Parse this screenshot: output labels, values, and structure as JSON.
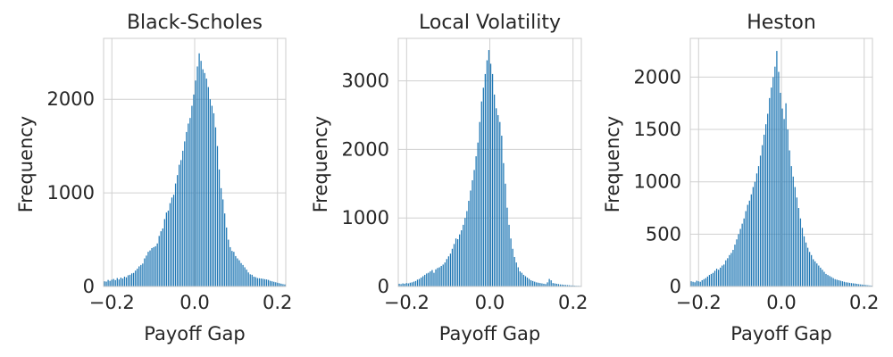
{
  "figure": {
    "bar_color": "#1f77b4",
    "grid": true,
    "background": "#ffffff"
  },
  "chart_data": [
    {
      "type": "bar",
      "title": "Black-Scholes",
      "xlabel": "Payoff Gap",
      "ylabel": "Frequency",
      "xlim": [
        -0.22,
        0.22
      ],
      "ylim": [
        0,
        2650
      ],
      "xticks": [
        -0.2,
        0.0,
        0.2
      ],
      "xtick_labels": [
        "−0.2",
        "0.0",
        "0.2"
      ],
      "yticks": [
        0,
        1000,
        2000
      ],
      "ytick_labels": [
        "0",
        "1000",
        "2000"
      ],
      "bin_width": 0.0044,
      "x": [
        -0.2178,
        -0.2134,
        -0.209,
        -0.2046,
        -0.2002,
        -0.1958,
        -0.1914,
        -0.187,
        -0.1826,
        -0.1782,
        -0.1738,
        -0.1694,
        -0.165,
        -0.1606,
        -0.1562,
        -0.1518,
        -0.1474,
        -0.143,
        -0.1386,
        -0.1342,
        -0.1298,
        -0.1254,
        -0.121,
        -0.1166,
        -0.1122,
        -0.1078,
        -0.1034,
        -0.099,
        -0.0946,
        -0.0902,
        -0.0858,
        -0.0814,
        -0.077,
        -0.0726,
        -0.0682,
        -0.0638,
        -0.0594,
        -0.055,
        -0.0506,
        -0.0462,
        -0.0418,
        -0.0374,
        -0.033,
        -0.0286,
        -0.0242,
        -0.0198,
        -0.0154,
        -0.011,
        -0.0066,
        -0.0022,
        0.0022,
        0.0066,
        0.011,
        0.0154,
        0.0198,
        0.0242,
        0.0286,
        0.033,
        0.0374,
        0.0418,
        0.0462,
        0.0506,
        0.055,
        0.0594,
        0.0638,
        0.0682,
        0.0726,
        0.077,
        0.0814,
        0.0858,
        0.0902,
        0.0946,
        0.099,
        0.1034,
        0.1078,
        0.1122,
        0.1166,
        0.121,
        0.1254,
        0.1298,
        0.1342,
        0.1386,
        0.143,
        0.1474,
        0.1518,
        0.1562,
        0.1606,
        0.165,
        0.1694,
        0.1738,
        0.1782,
        0.1826,
        0.187,
        0.1914,
        0.1958,
        0.2002,
        0.2046,
        0.209,
        0.2134,
        0.2178
      ],
      "values": [
        55,
        52,
        70,
        60,
        72,
        80,
        68,
        90,
        75,
        95,
        85,
        105,
        98,
        120,
        125,
        140,
        145,
        170,
        190,
        215,
        230,
        245,
        300,
        330,
        370,
        385,
        410,
        420,
        430,
        460,
        540,
        590,
        620,
        720,
        790,
        810,
        890,
        950,
        980,
        1100,
        1190,
        1300,
        1350,
        1450,
        1550,
        1650,
        1740,
        1800,
        1930,
        2050,
        2200,
        2350,
        2490,
        2410,
        2320,
        2280,
        2220,
        2130,
        2000,
        1930,
        1850,
        1700,
        1500,
        1250,
        1050,
        930,
        780,
        630,
        500,
        420,
        380,
        370,
        325,
        300,
        280,
        250,
        230,
        205,
        180,
        150,
        130,
        125,
        105,
        100,
        90,
        88,
        85,
        82,
        78,
        75,
        70,
        60,
        55,
        50,
        45,
        40,
        35,
        30,
        25,
        22
      ]
    },
    {
      "type": "bar",
      "title": "Local Volatility",
      "xlabel": "Payoff Gap",
      "ylabel": "Frequency",
      "xlim": [
        -0.22,
        0.22
      ],
      "ylim": [
        0,
        3620
      ],
      "xticks": [
        -0.2,
        0.0,
        0.2
      ],
      "xtick_labels": [
        "−0.2",
        "0.0",
        "0.2"
      ],
      "yticks": [
        0,
        1000,
        2000,
        3000
      ],
      "ytick_labels": [
        "0",
        "1000",
        "2000",
        "3000"
      ],
      "bin_width": 0.0044,
      "x": [
        -0.2178,
        -0.2134,
        -0.209,
        -0.2046,
        -0.2002,
        -0.1958,
        -0.1914,
        -0.187,
        -0.1826,
        -0.1782,
        -0.1738,
        -0.1694,
        -0.165,
        -0.1606,
        -0.1562,
        -0.1518,
        -0.1474,
        -0.143,
        -0.1386,
        -0.1342,
        -0.1298,
        -0.1254,
        -0.121,
        -0.1166,
        -0.1122,
        -0.1078,
        -0.1034,
        -0.099,
        -0.0946,
        -0.0902,
        -0.0858,
        -0.0814,
        -0.077,
        -0.0726,
        -0.0682,
        -0.0638,
        -0.0594,
        -0.055,
        -0.0506,
        -0.0462,
        -0.0418,
        -0.0374,
        -0.033,
        -0.0286,
        -0.0242,
        -0.0198,
        -0.0154,
        -0.011,
        -0.0066,
        -0.0022,
        0.0022,
        0.0066,
        0.011,
        0.0154,
        0.0198,
        0.0242,
        0.0286,
        0.033,
        0.0374,
        0.0418,
        0.0462,
        0.0506,
        0.055,
        0.0594,
        0.0638,
        0.0682,
        0.0726,
        0.077,
        0.0814,
        0.0858,
        0.0902,
        0.0946,
        0.099,
        0.1034,
        0.1078,
        0.1122,
        0.1166,
        0.121,
        0.1254,
        0.1298,
        0.1342,
        0.1386,
        0.143,
        0.1474,
        0.1518,
        0.1562,
        0.1606,
        0.165,
        0.1694,
        0.1738,
        0.1782,
        0.1826,
        0.187,
        0.1914,
        0.1958,
        0.2002,
        0.2046,
        0.209,
        0.2134,
        0.2178
      ],
      "values": [
        40,
        35,
        45,
        40,
        50,
        45,
        55,
        60,
        70,
        80,
        100,
        110,
        130,
        150,
        170,
        190,
        200,
        220,
        240,
        200,
        250,
        270,
        280,
        300,
        320,
        350,
        400,
        440,
        480,
        550,
        620,
        700,
        690,
        760,
        820,
        900,
        1000,
        1100,
        1250,
        1400,
        1550,
        1700,
        1900,
        2100,
        2400,
        2700,
        2900,
        3100,
        3300,
        3450,
        3250,
        3100,
        2800,
        2600,
        2500,
        2400,
        2200,
        1800,
        1500,
        1150,
        900,
        700,
        550,
        430,
        350,
        280,
        220,
        200,
        170,
        150,
        130,
        110,
        90,
        80,
        70,
        60,
        55,
        50,
        45,
        40,
        35,
        60,
        110,
        90,
        50,
        45,
        40,
        35,
        30,
        28,
        25,
        22,
        20,
        18,
        15,
        14,
        12,
        10,
        10,
        8
      ]
    },
    {
      "type": "bar",
      "title": "Heston",
      "xlabel": "Payoff Gap",
      "ylabel": "Frequency",
      "xlim": [
        -0.22,
        0.22
      ],
      "ylim": [
        0,
        2370
      ],
      "xticks": [
        -0.2,
        0.0,
        0.2
      ],
      "xtick_labels": [
        "−0.2",
        "0.0",
        "0.2"
      ],
      "yticks": [
        0,
        500,
        1000,
        1500,
        2000
      ],
      "ytick_labels": [
        "0",
        "500",
        "1000",
        "1500",
        "2000"
      ],
      "bin_width": 0.0044,
      "x": [
        -0.2178,
        -0.2134,
        -0.209,
        -0.2046,
        -0.2002,
        -0.1958,
        -0.1914,
        -0.187,
        -0.1826,
        -0.1782,
        -0.1738,
        -0.1694,
        -0.165,
        -0.1606,
        -0.1562,
        -0.1518,
        -0.1474,
        -0.143,
        -0.1386,
        -0.1342,
        -0.1298,
        -0.1254,
        -0.121,
        -0.1166,
        -0.1122,
        -0.1078,
        -0.1034,
        -0.099,
        -0.0946,
        -0.0902,
        -0.0858,
        -0.0814,
        -0.077,
        -0.0726,
        -0.0682,
        -0.0638,
        -0.0594,
        -0.055,
        -0.0506,
        -0.0462,
        -0.0418,
        -0.0374,
        -0.033,
        -0.0286,
        -0.0242,
        -0.0198,
        -0.0154,
        -0.011,
        -0.0066,
        -0.0022,
        0.0022,
        0.0066,
        0.011,
        0.0154,
        0.0198,
        0.0242,
        0.0286,
        0.033,
        0.0374,
        0.0418,
        0.0462,
        0.0506,
        0.055,
        0.0594,
        0.0638,
        0.0682,
        0.0726,
        0.077,
        0.0814,
        0.0858,
        0.0902,
        0.0946,
        0.099,
        0.1034,
        0.1078,
        0.1122,
        0.1166,
        0.121,
        0.1254,
        0.1298,
        0.1342,
        0.1386,
        0.143,
        0.1474,
        0.1518,
        0.1562,
        0.1606,
        0.165,
        0.1694,
        0.1738,
        0.1782,
        0.1826,
        0.187,
        0.1914,
        0.1958,
        0.2002,
        0.2046,
        0.209,
        0.2134,
        0.2178
      ],
      "values": [
        50,
        45,
        40,
        55,
        50,
        45,
        60,
        70,
        80,
        95,
        110,
        120,
        130,
        150,
        170,
        160,
        180,
        200,
        210,
        250,
        270,
        300,
        320,
        350,
        400,
        450,
        500,
        550,
        600,
        650,
        720,
        780,
        820,
        880,
        950,
        1000,
        1080,
        1150,
        1250,
        1350,
        1450,
        1550,
        1650,
        1800,
        1900,
        2000,
        2100,
        2250,
        2050,
        1850,
        1700,
        1600,
        1750,
        1500,
        1300,
        1150,
        1050,
        950,
        850,
        750,
        650,
        560,
        480,
        420,
        370,
        330,
        300,
        260,
        240,
        220,
        200,
        180,
        160,
        140,
        120,
        110,
        100,
        90,
        80,
        70,
        65,
        60,
        55,
        50,
        45,
        40,
        38,
        35,
        32,
        30,
        28,
        25,
        22,
        20,
        18,
        16,
        14,
        12,
        10,
        8
      ]
    }
  ]
}
